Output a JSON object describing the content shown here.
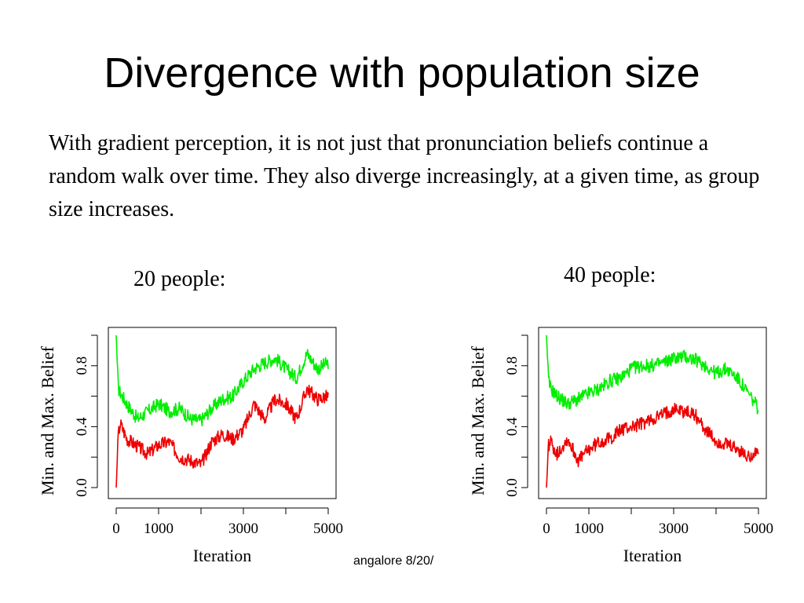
{
  "slide": {
    "title": "Divergence with population size",
    "body": "With gradient perception, it is not just that pronunciation beliefs continue a random walk over time. They also diverge increasingly, at a given time, as group size increases.",
    "label_left": "20 people:",
    "label_right": "40 people:",
    "footer": "angalore 8/20/"
  },
  "chart_data": [
    {
      "type": "line",
      "xlabel": "Iteration",
      "ylabel": "Min. and Max. Belief",
      "xlim": [
        0,
        5000
      ],
      "ylim": [
        0.0,
        1.0
      ],
      "xticks": [
        0,
        1000,
        2000,
        3000,
        4000,
        5000
      ],
      "xtick_labels": [
        "0",
        "1000",
        "",
        "3000",
        "",
        "5000"
      ],
      "yticks": [
        0.0,
        0.2,
        0.4,
        0.6,
        0.8,
        1.0
      ],
      "ytick_labels": [
        "0.0",
        "",
        "0.4",
        "",
        "0.8",
        ""
      ],
      "series": [
        {
          "color": "#00ee00",
          "x": [
            0,
            50,
            100,
            250,
            500,
            750,
            1000,
            1250,
            1500,
            1750,
            2000,
            2250,
            2500,
            2750,
            3000,
            3250,
            3500,
            3750,
            4000,
            4250,
            4500,
            4750,
            5000
          ],
          "values": [
            1.0,
            0.65,
            0.62,
            0.55,
            0.45,
            0.5,
            0.55,
            0.5,
            0.52,
            0.45,
            0.44,
            0.52,
            0.58,
            0.6,
            0.7,
            0.78,
            0.82,
            0.85,
            0.78,
            0.72,
            0.88,
            0.78,
            0.82
          ]
        },
        {
          "color": "#ee0000",
          "x": [
            0,
            50,
            100,
            250,
            500,
            750,
            1000,
            1250,
            1500,
            1750,
            2000,
            2250,
            2500,
            2750,
            3000,
            3250,
            3500,
            3750,
            4000,
            4250,
            4500,
            4750,
            5000
          ],
          "values": [
            0.0,
            0.35,
            0.42,
            0.32,
            0.27,
            0.22,
            0.28,
            0.3,
            0.2,
            0.18,
            0.15,
            0.3,
            0.35,
            0.32,
            0.38,
            0.55,
            0.45,
            0.58,
            0.55,
            0.45,
            0.65,
            0.58,
            0.6
          ]
        }
      ]
    },
    {
      "type": "line",
      "xlabel": "Iteration",
      "ylabel": "Min. and Max. Belief",
      "xlim": [
        0,
        5000
      ],
      "ylim": [
        0.0,
        1.0
      ],
      "xticks": [
        0,
        1000,
        2000,
        3000,
        4000,
        5000
      ],
      "xtick_labels": [
        "0",
        "1000",
        "",
        "3000",
        "",
        "5000"
      ],
      "yticks": [
        0.0,
        0.2,
        0.4,
        0.6,
        0.8,
        1.0
      ],
      "ytick_labels": [
        "0.0",
        "",
        "0.4",
        "",
        "0.8",
        ""
      ],
      "series": [
        {
          "color": "#00ee00",
          "x": [
            0,
            50,
            100,
            250,
            500,
            750,
            1000,
            1250,
            1500,
            1750,
            2000,
            2250,
            2500,
            2750,
            3000,
            3250,
            3500,
            3750,
            4000,
            4250,
            4500,
            4750,
            5000
          ],
          "values": [
            1.0,
            0.7,
            0.65,
            0.6,
            0.55,
            0.58,
            0.62,
            0.65,
            0.7,
            0.72,
            0.78,
            0.8,
            0.8,
            0.82,
            0.85,
            0.86,
            0.84,
            0.8,
            0.75,
            0.78,
            0.72,
            0.62,
            0.52
          ]
        },
        {
          "color": "#ee0000",
          "x": [
            0,
            50,
            100,
            250,
            500,
            750,
            1000,
            1250,
            1500,
            1750,
            2000,
            2250,
            2500,
            2750,
            3000,
            3250,
            3500,
            3750,
            4000,
            4250,
            4500,
            4750,
            5000
          ],
          "values": [
            0.0,
            0.28,
            0.3,
            0.22,
            0.32,
            0.18,
            0.25,
            0.3,
            0.32,
            0.38,
            0.4,
            0.42,
            0.45,
            0.48,
            0.52,
            0.5,
            0.48,
            0.38,
            0.3,
            0.28,
            0.25,
            0.2,
            0.25
          ]
        }
      ]
    }
  ]
}
